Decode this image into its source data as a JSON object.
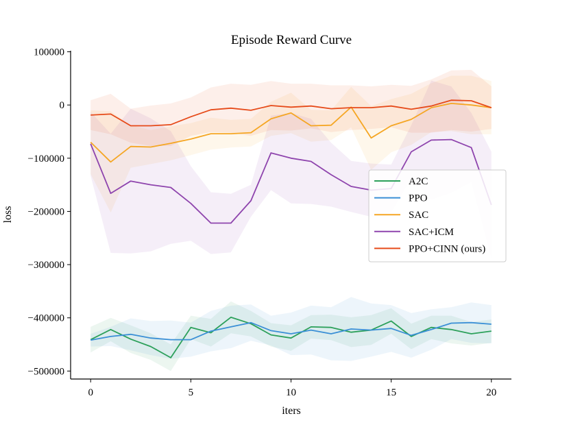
{
  "chart_data": {
    "type": "line",
    "title": "Episode Reward Curve",
    "xlabel": "iters",
    "ylabel": "loss",
    "xlim": [
      -1,
      21
    ],
    "ylim": [
      -515000,
      102000
    ],
    "xticks": [
      0,
      5,
      10,
      15,
      20
    ],
    "xtick_labels": [
      "0",
      "5",
      "10",
      "15",
      "20"
    ],
    "yticks": [
      100000,
      0,
      -100000,
      -200000,
      -300000,
      -400000,
      -500000
    ],
    "ytick_labels": [
      "100000",
      "0",
      "−100000",
      "−200000",
      "−300000",
      "−400000",
      "−500000"
    ],
    "legend_position": "center-right",
    "x": [
      0,
      1,
      2,
      3,
      4,
      5,
      6,
      7,
      8,
      9,
      10,
      11,
      12,
      13,
      14,
      15,
      16,
      17,
      18,
      19,
      20
    ],
    "series": [
      {
        "name": "A2C",
        "color": "#2ca05a",
        "values": [
          -441000,
          -422000,
          -440000,
          -454000,
          -475000,
          -418000,
          -428000,
          -399000,
          -411000,
          -432000,
          -438000,
          -417000,
          -418000,
          -427000,
          -423000,
          -406000,
          -435000,
          -418000,
          -422000,
          -430000,
          -425000
        ],
        "band": [
          24000,
          22000,
          26000,
          25000,
          25000,
          22000,
          26000,
          30000,
          24000,
          22000,
          24000,
          22000,
          24000,
          28000,
          28000,
          24000,
          24000,
          22000,
          26000,
          22000,
          22000
        ]
      },
      {
        "name": "PPO",
        "color": "#3a8fd6",
        "values": [
          -442000,
          -435000,
          -431000,
          -438000,
          -441000,
          -441000,
          -425000,
          -417000,
          -409000,
          -424000,
          -430000,
          -423000,
          -430000,
          -421000,
          -423000,
          -420000,
          -433000,
          -422000,
          -410000,
          -409000,
          -412000
        ],
        "band": [
          12000,
          18000,
          30000,
          32000,
          36000,
          32000,
          38000,
          40000,
          34000,
          28000,
          40000,
          46000,
          50000,
          60000,
          50000,
          44000,
          42000,
          38000,
          30000,
          38000,
          36000
        ]
      },
      {
        "name": "SAC",
        "color": "#f5a623",
        "values": [
          -70000,
          -107000,
          -78000,
          -79000,
          -72000,
          -64000,
          -54000,
          -54000,
          -52000,
          -26000,
          -15000,
          -39000,
          -38000,
          -4000,
          -62000,
          -39000,
          -27000,
          -5000,
          3000,
          0,
          -5000
        ],
        "band": [
          60000,
          95000,
          40000,
          32000,
          32000,
          30000,
          30000,
          26000,
          26000,
          32000,
          38000,
          30000,
          28000,
          38000,
          60000,
          50000,
          48000,
          46000,
          52000,
          55000,
          50000
        ]
      },
      {
        "name": "SAC+ICM",
        "color": "#8e44ad",
        "values": [
          -73000,
          -166000,
          -143000,
          -150000,
          -155000,
          -185000,
          -222000,
          -222000,
          -180000,
          -90000,
          -100000,
          -106000,
          -131000,
          -153000,
          -160000,
          -157000,
          -88000,
          -66000,
          -65000,
          -80000,
          -188000
        ],
        "band": [
          60000,
          112000,
          136000,
          125000,
          106000,
          70000,
          58000,
          55000,
          30000,
          70000,
          85000,
          80000,
          60000,
          48000,
          50000,
          45000,
          50000,
          112000,
          100000,
          65000,
          100000
        ]
      },
      {
        "name": "PPO+CINN (ours)",
        "color": "#e64a19",
        "values": [
          -19000,
          -17000,
          -39000,
          -39000,
          -37000,
          -22000,
          -9000,
          -6000,
          -10000,
          -1000,
          -4000,
          -2000,
          -7000,
          -5000,
          -5000,
          -2000,
          -8000,
          -2000,
          9000,
          8000,
          -5000
        ],
        "band": [
          28000,
          38000,
          32000,
          38000,
          40000,
          36000,
          42000,
          46000,
          48000,
          46000,
          44000,
          42000,
          44000,
          42000,
          40000,
          40000,
          44000,
          50000,
          56000,
          58000,
          40000
        ]
      }
    ]
  }
}
